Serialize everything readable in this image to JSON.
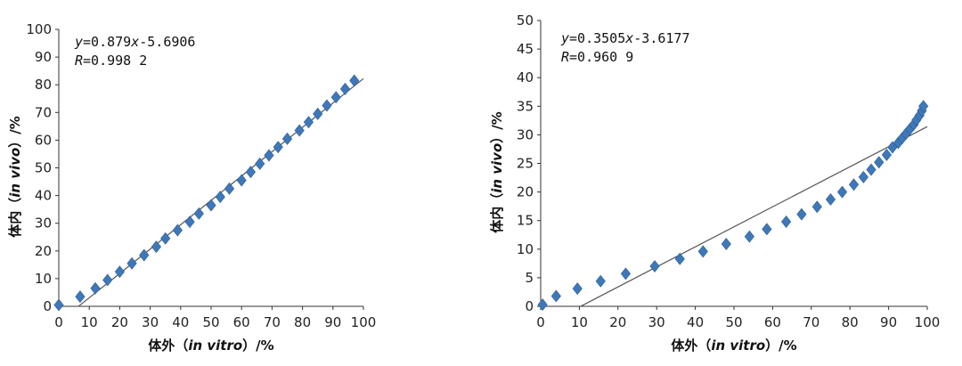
{
  "chart_data": [
    {
      "type": "scatter",
      "title": "",
      "xlabel": "体外（in vitro）/%",
      "xlabel_parts": {
        "pre": "体外（",
        "italic": "in vitro",
        "post": "）/%"
      },
      "ylabel": "体内（in vivo）/%",
      "ylabel_parts": {
        "pre": "体内（",
        "italic": "in vivo",
        "post": "）/%"
      },
      "xlim": [
        0,
        100
      ],
      "ylim": [
        0,
        100
      ],
      "xticks": [
        0,
        10,
        20,
        30,
        40,
        50,
        60,
        70,
        80,
        90,
        100
      ],
      "yticks": [
        0,
        10,
        20,
        30,
        40,
        50,
        60,
        70,
        80,
        90,
        100
      ],
      "grid": false,
      "marker_color": "#3f78b8",
      "line_color": "#555555",
      "equation": "y=0.879x-5.6906",
      "equation_parts": {
        "y": "y",
        "mid": "=0.879",
        "x": "x",
        "tail": "-5.6906"
      },
      "r_text": "R=0.998 2",
      "r_parts": {
        "r": "R",
        "rest": "=0.998 2"
      },
      "fit": {
        "slope": 0.879,
        "intercept": -5.6906,
        "x_range": [
          6.5,
          100
        ]
      },
      "x": [
        0,
        7,
        12,
        16,
        20,
        24,
        28,
        32,
        35,
        39,
        43,
        46,
        50,
        53,
        56,
        60,
        63,
        66,
        69,
        72,
        75,
        79,
        82,
        85,
        88,
        91,
        94,
        97
      ],
      "y": [
        0.5,
        3.5,
        6.5,
        9.5,
        12.5,
        15.5,
        18.5,
        21.5,
        24.5,
        27.5,
        30.5,
        33.5,
        36.5,
        39.5,
        42.5,
        45.5,
        48.5,
        51.5,
        54.5,
        57.5,
        60.5,
        63.5,
        66.5,
        69.5,
        72.5,
        75.5,
        78.5,
        81.5
      ]
    },
    {
      "type": "scatter",
      "title": "",
      "xlabel": "体外（in vitro）/%",
      "xlabel_parts": {
        "pre": "体外（",
        "italic": "in vitro",
        "post": "）/%"
      },
      "ylabel": "体内（in vivo）/%",
      "ylabel_parts": {
        "pre": "体内（",
        "italic": "in vivo",
        "post": "）/%"
      },
      "xlim": [
        0,
        100
      ],
      "ylim": [
        0,
        50
      ],
      "xticks": [
        0,
        10,
        20,
        30,
        40,
        50,
        60,
        70,
        80,
        90,
        100
      ],
      "yticks": [
        0,
        5,
        10,
        15,
        20,
        25,
        30,
        35,
        40,
        45,
        50
      ],
      "grid": false,
      "marker_color": "#3f78b8",
      "line_color": "#555555",
      "equation": "y=0.3505x-3.6177",
      "equation_parts": {
        "y": "y",
        "mid": "=0.3505",
        "x": "x",
        "tail": "-3.6177"
      },
      "r_text": "R=0.960 9",
      "r_parts": {
        "r": "R",
        "rest": "=0.960 9"
      },
      "fit": {
        "slope": 0.3505,
        "intercept": -3.6177,
        "x_range": [
          10.3,
          100
        ]
      },
      "x": [
        0.5,
        4,
        9.5,
        15.5,
        22,
        29.5,
        36,
        42,
        48,
        54,
        58.5,
        63.5,
        67.5,
        71.5,
        75,
        78,
        81,
        83.5,
        85.5,
        87.5,
        89.5,
        91,
        92.5,
        93.5,
        94.5,
        95.5,
        96.5,
        97.2,
        98,
        98.6,
        99
      ],
      "y": [
        0.3,
        1.8,
        3.1,
        4.4,
        5.7,
        7.0,
        8.3,
        9.6,
        10.9,
        12.2,
        13.5,
        14.8,
        16.1,
        17.4,
        18.7,
        20.0,
        21.3,
        22.6,
        23.9,
        25.2,
        26.5,
        27.8,
        28.6,
        29.4,
        30.2,
        31.0,
        31.8,
        32.6,
        33.4,
        34.2,
        35.0
      ]
    }
  ]
}
